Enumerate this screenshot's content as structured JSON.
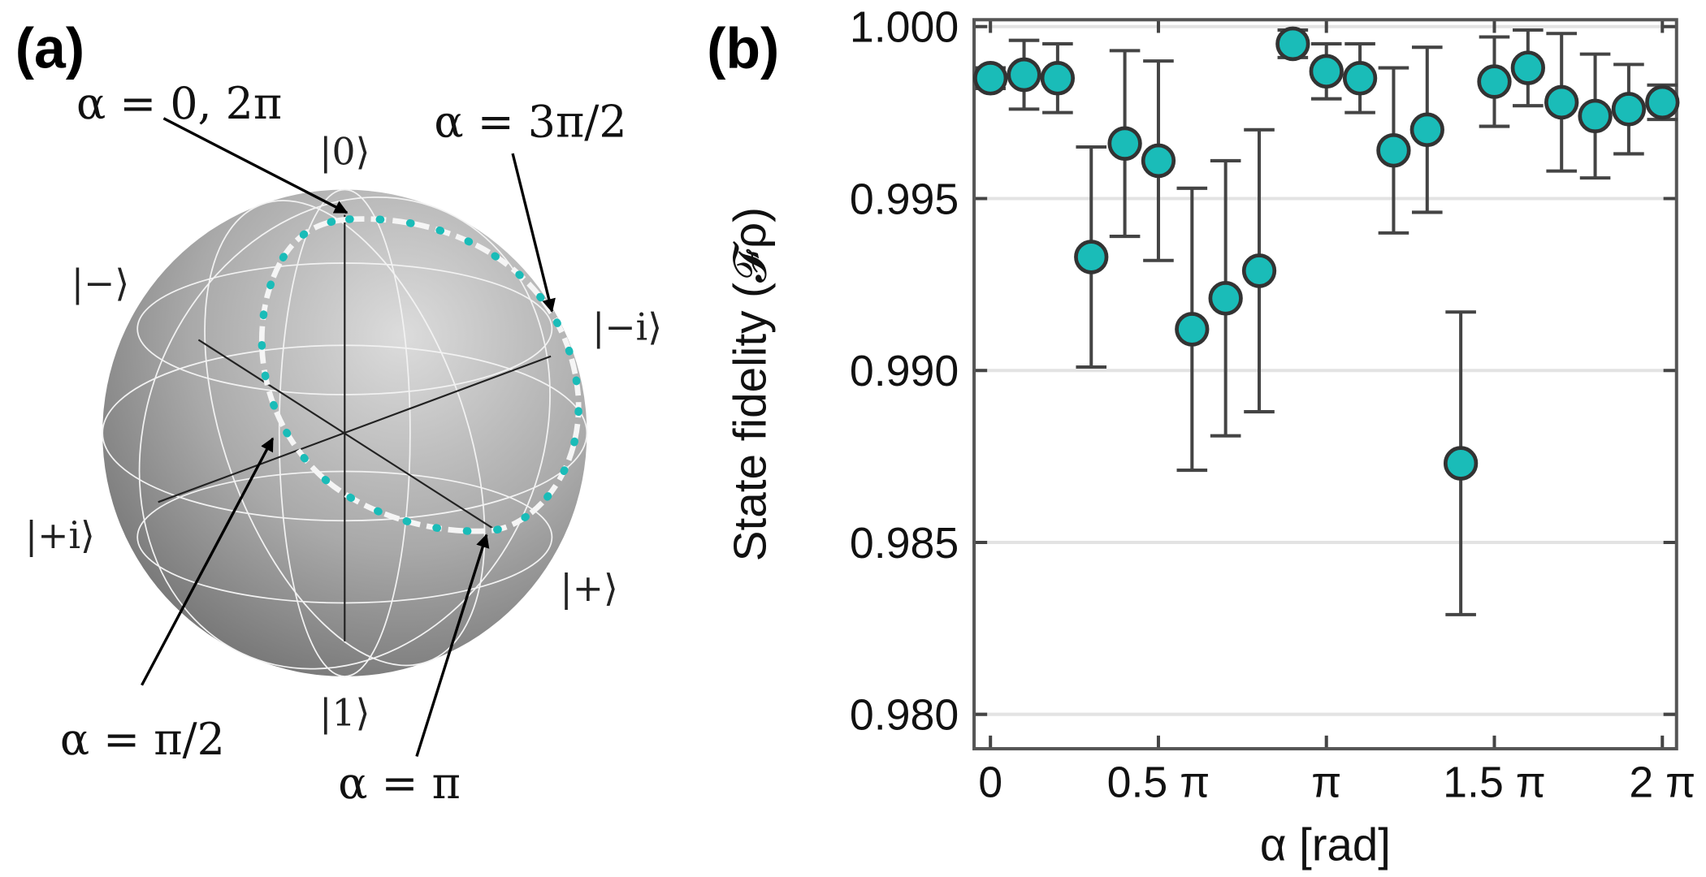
{
  "diagram": {
    "panel_label": "(a)",
    "state_labels": [
      "|0⟩",
      "|−⟩",
      "|−i⟩",
      "|+i⟩",
      "|+⟩",
      "|1⟩"
    ],
    "annotations": [
      "α = 0, 2π",
      "α = 3π/2",
      "α = π/2",
      "α = π"
    ]
  },
  "chart_data": {
    "type": "scatter",
    "panel_label": "(b)",
    "x_label": "α [rad]",
    "y_label": "State fidelity (𝓕ρ)",
    "x": [
      0,
      0.3142,
      0.6283,
      0.9425,
      1.2566,
      1.5708,
      1.885,
      2.1991,
      2.5133,
      2.8274,
      3.1416,
      3.4558,
      3.7699,
      4.0841,
      4.3982,
      4.7124,
      5.0265,
      5.3407,
      5.6549,
      5.969,
      6.2832
    ],
    "values": [
      0.9985,
      0.9986,
      0.9985,
      0.9933,
      0.9966,
      0.9961,
      0.9912,
      0.9921,
      0.9929,
      0.9995,
      0.9987,
      0.9985,
      0.9964,
      0.997,
      0.9873,
      0.9984,
      0.9988,
      0.9978,
      0.9974,
      0.9976,
      0.9978
    ],
    "errors": [
      0.0003,
      0.001,
      0.001,
      0.0032,
      0.0027,
      0.0029,
      0.0041,
      0.004,
      0.0041,
      0.0004,
      0.0008,
      0.001,
      0.0024,
      0.0024,
      0.0044,
      0.0013,
      0.0011,
      0.002,
      0.0018,
      0.0013,
      0.0005
    ],
    "color": "#1abcb8",
    "edgecolor": "#333333",
    "xlim": [
      -0.153,
      6.416
    ],
    "ylim": [
      0.979,
      1.0002
    ],
    "xticks": [
      0,
      {
        "value": 1.5708,
        "label": "0.5 π"
      },
      {
        "value": 3.1416,
        "label": "π"
      },
      {
        "value": 4.7124,
        "label": "1.5 π"
      },
      {
        "value": 6.2832,
        "label": "2 π"
      }
    ],
    "yticks": [
      {
        "value": 0.98,
        "label": "0.980"
      },
      {
        "value": 0.985,
        "label": "0.985"
      },
      {
        "value": 0.99,
        "label": "0.990"
      },
      {
        "value": 0.995,
        "label": "0.995"
      },
      {
        "value": 1.0,
        "label": "1.000"
      }
    ],
    "grid": true
  }
}
